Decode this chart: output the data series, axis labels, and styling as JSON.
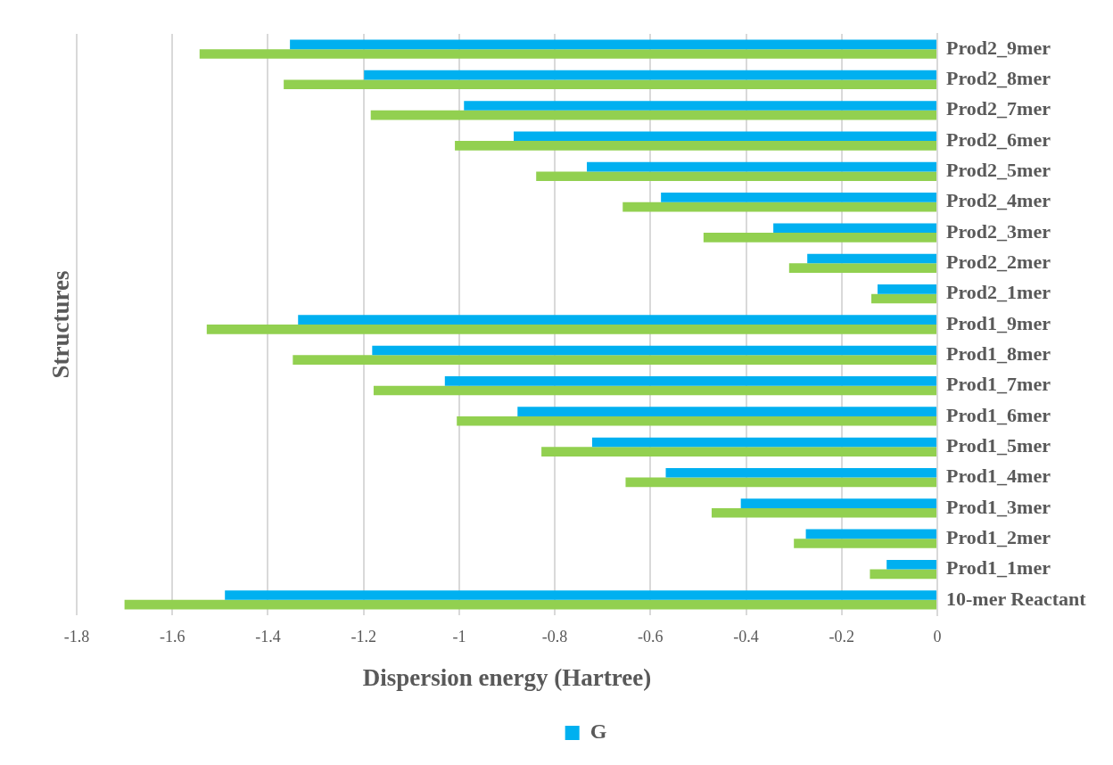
{
  "chart_data": {
    "type": "bar",
    "orientation": "horizontal",
    "xlabel": "Dispersion energy (Hartree)",
    "ylabel": "Structures",
    "categories": [
      "Prod2_9mer",
      "Prod2_8mer",
      "Prod2_7mer",
      "Prod2_6mer",
      "Prod2_5mer",
      "Prod2_4mer",
      "Prod2_3mer",
      "Prod2_2mer",
      "Prod2_1mer",
      "Prod1_9mer",
      "Prod1_8mer",
      "Prod1_7mer",
      "Prod1_6mer",
      "Prod1_5mer",
      "Prod1_4mer",
      "Prod1_3mer",
      "Prod1_2mer",
      "Prod1_1mer",
      "10-mer Reactant"
    ],
    "series": [
      {
        "name": "G",
        "color": "#00b0f0",
        "values": [
          -1.354,
          -1.199,
          -0.99,
          -0.886,
          -0.733,
          -0.578,
          -0.343,
          -0.272,
          -0.125,
          -1.337,
          -1.182,
          -1.03,
          -0.878,
          -0.722,
          -0.568,
          -0.411,
          -0.275,
          -0.106,
          -1.49
        ]
      },
      {
        "color": "#92d050",
        "values": [
          -1.543,
          -1.367,
          -1.185,
          -1.009,
          -0.839,
          -0.658,
          -0.489,
          -0.31,
          -0.138,
          -1.528,
          -1.348,
          -1.179,
          -1.005,
          -0.828,
          -0.652,
          -0.472,
          -0.3,
          -0.141,
          -1.7
        ]
      }
    ],
    "xlim": [
      -1.8,
      0
    ],
    "xticks": [
      -1.8,
      -1.6,
      -1.4,
      -1.2,
      -1,
      -0.8,
      -0.6,
      -0.4,
      -0.2,
      0
    ],
    "grid": "x",
    "legend": "bottom"
  }
}
